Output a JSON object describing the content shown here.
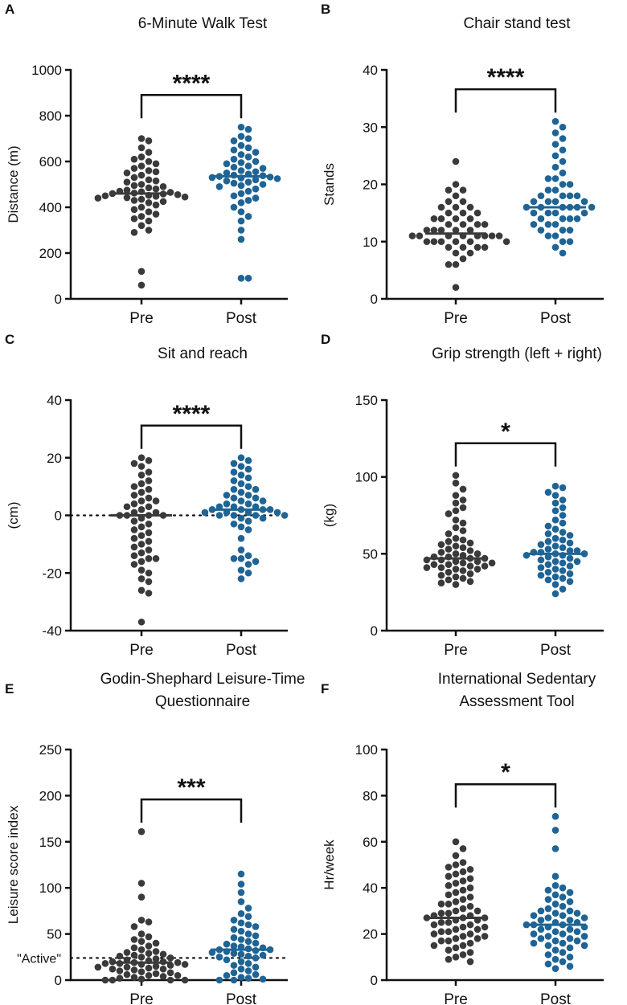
{
  "colors": {
    "pre": "#3a3a3a",
    "post": "#1f6495",
    "axis": "#111111"
  },
  "chart_data": [
    {
      "id": "A",
      "type": "scatter",
      "panel_label": "A",
      "title": [
        "6-Minute Walk Test"
      ],
      "ylabel": "Distance (m)",
      "ylim": [
        0,
        1000
      ],
      "yticks": [
        0,
        200,
        400,
        600,
        800,
        1000
      ],
      "categories": [
        "Pre",
        "Post"
      ],
      "significance": "****",
      "series": [
        {
          "name": "Pre",
          "median": 460,
          "values": [
            700,
            690,
            660,
            640,
            620,
            610,
            600,
            590,
            580,
            570,
            560,
            555,
            550,
            540,
            530,
            520,
            515,
            510,
            500,
            495,
            490,
            485,
            480,
            475,
            470,
            468,
            465,
            462,
            460,
            458,
            455,
            452,
            450,
            448,
            445,
            442,
            440,
            435,
            430,
            425,
            420,
            410,
            400,
            390,
            380,
            370,
            360,
            350,
            340,
            320,
            300,
            290,
            120,
            60
          ]
        },
        {
          "name": "Post",
          "median": 535,
          "values": [
            750,
            740,
            710,
            700,
            690,
            670,
            660,
            650,
            640,
            630,
            620,
            610,
            600,
            595,
            590,
            580,
            575,
            570,
            560,
            555,
            550,
            545,
            540,
            538,
            535,
            532,
            530,
            528,
            525,
            520,
            515,
            510,
            505,
            500,
            495,
            490,
            480,
            470,
            460,
            450,
            440,
            430,
            420,
            400,
            380,
            360,
            340,
            300,
            260,
            90,
            90
          ]
        }
      ]
    },
    {
      "id": "B",
      "type": "scatter",
      "panel_label": "B",
      "title": [
        "Chair stand test"
      ],
      "ylabel": "Stands",
      "ylim": [
        0,
        40
      ],
      "yticks": [
        0,
        10,
        20,
        30,
        40
      ],
      "categories": [
        "Pre",
        "Post"
      ],
      "significance": "****",
      "series": [
        {
          "name": "Pre",
          "median": 11.4,
          "values": [
            24,
            20,
            19,
            19,
            18,
            17,
            17,
            16,
            16,
            16,
            15,
            15,
            15,
            14,
            14,
            14,
            14,
            13,
            13,
            13,
            13,
            12,
            12,
            12,
            12,
            12,
            11,
            11,
            11,
            11,
            11,
            11,
            11,
            11,
            10,
            10,
            10,
            10,
            10,
            10,
            9,
            9,
            9,
            9,
            8,
            8,
            7,
            6,
            6,
            2
          ]
        },
        {
          "name": "Post",
          "median": 16,
          "values": [
            31,
            30,
            29,
            28,
            27,
            26,
            25,
            24,
            23,
            22,
            21,
            21,
            20,
            20,
            19,
            19,
            18,
            18,
            18,
            18,
            17,
            17,
            17,
            17,
            16,
            16,
            16,
            16,
            16,
            16,
            15,
            15,
            15,
            15,
            14,
            14,
            14,
            14,
            13,
            13,
            13,
            12,
            12,
            12,
            11,
            11,
            10,
            10,
            9,
            8
          ]
        }
      ]
    },
    {
      "id": "C",
      "type": "scatter",
      "panel_label": "C",
      "title": [
        "Sit and reach"
      ],
      "ylabel": "(cm)",
      "ylim": [
        -40,
        40
      ],
      "yticks": [
        -40,
        -20,
        0,
        20,
        40
      ],
      "categories": [
        "Pre",
        "Post"
      ],
      "significance": "****",
      "refline": 0,
      "series": [
        {
          "name": "Pre",
          "median": 0,
          "values": [
            20,
            19,
            18,
            17,
            15,
            14,
            12,
            11,
            10,
            9,
            8,
            7,
            6,
            5,
            5,
            4,
            3,
            3,
            2,
            1,
            1,
            0,
            0,
            0,
            0,
            -1,
            -2,
            -3,
            -4,
            -5,
            -6,
            -7,
            -8,
            -9,
            -10,
            -11,
            -12,
            -13,
            -14,
            -15,
            -15,
            -16,
            -17,
            -19,
            -20,
            -22,
            -23,
            -26,
            -27,
            -37
          ]
        },
        {
          "name": "Post",
          "median": 2,
          "values": [
            20,
            19,
            18,
            17,
            16,
            15,
            14,
            13,
            12,
            11,
            10,
            9,
            9,
            8,
            7,
            7,
            6,
            6,
            5,
            5,
            4,
            4,
            3,
            3,
            3,
            2,
            2,
            2,
            2,
            1,
            1,
            1,
            1,
            0,
            0,
            0,
            0,
            -1,
            -1,
            -2,
            -3,
            -4,
            -5,
            -8,
            -12,
            -14,
            -15,
            -15,
            -16,
            -17,
            -19,
            -20,
            -22
          ]
        }
      ]
    },
    {
      "id": "D",
      "type": "scatter",
      "panel_label": "D",
      "title": [
        "Grip strength (left + right)"
      ],
      "ylabel": "(kg)",
      "ylim": [
        0,
        150
      ],
      "yticks": [
        0,
        50,
        100,
        150
      ],
      "categories": [
        "Pre",
        "Post"
      ],
      "significance": "*",
      "series": [
        {
          "name": "Pre",
          "median": 47,
          "values": [
            101,
            96,
            92,
            88,
            85,
            83,
            80,
            78,
            76,
            72,
            70,
            67,
            65,
            63,
            60,
            59,
            58,
            57,
            56,
            55,
            54,
            53,
            52,
            51,
            50,
            50,
            49,
            48,
            48,
            47,
            47,
            46,
            46,
            45,
            45,
            44,
            44,
            43,
            43,
            42,
            42,
            41,
            41,
            40,
            40,
            39,
            38,
            37,
            36,
            35,
            34,
            33,
            32,
            31,
            30
          ]
        },
        {
          "name": "Post",
          "median": 50,
          "values": [
            94,
            93,
            90,
            88,
            85,
            83,
            80,
            78,
            75,
            72,
            70,
            68,
            66,
            64,
            63,
            62,
            60,
            59,
            58,
            57,
            56,
            55,
            54,
            53,
            52,
            52,
            51,
            51,
            50,
            50,
            49,
            49,
            48,
            47,
            46,
            45,
            45,
            44,
            43,
            42,
            41,
            40,
            39,
            38,
            37,
            36,
            35,
            34,
            33,
            32,
            30,
            27,
            24
          ]
        }
      ]
    },
    {
      "id": "E",
      "type": "scatter",
      "panel_label": "E",
      "title": [
        "Godin-Shephard Leisure-Time",
        "Questionnaire"
      ],
      "ylabel": "Leisure score index",
      "ylim": [
        0,
        250
      ],
      "yticks": [
        0,
        50,
        100,
        150,
        200,
        250
      ],
      "categories": [
        "Pre",
        "Post"
      ],
      "significance": "***",
      "refline": 24,
      "refline_label": "\"Active\"",
      "series": [
        {
          "name": "Pre",
          "median": 19,
          "values": [
            161,
            105,
            90,
            65,
            63,
            58,
            50,
            47,
            44,
            42,
            40,
            37,
            35,
            33,
            31,
            30,
            29,
            28,
            27,
            26,
            25,
            24,
            23,
            22,
            21,
            20,
            20,
            19,
            19,
            18,
            18,
            17,
            17,
            16,
            15,
            14,
            14,
            13,
            12,
            12,
            11,
            10,
            9,
            8,
            7,
            6,
            5,
            5,
            4,
            3,
            2,
            1,
            0,
            0,
            0,
            0
          ]
        },
        {
          "name": "Post",
          "median": 33,
          "values": [
            115,
            104,
            95,
            85,
            78,
            72,
            69,
            65,
            62,
            60,
            58,
            55,
            53,
            50,
            48,
            46,
            44,
            42,
            40,
            39,
            37,
            36,
            35,
            34,
            33,
            33,
            32,
            31,
            30,
            29,
            28,
            27,
            26,
            25,
            24,
            22,
            20,
            18,
            16,
            14,
            12,
            10,
            8,
            6,
            5,
            3,
            2,
            1,
            0,
            0
          ]
        }
      ]
    },
    {
      "id": "F",
      "type": "scatter",
      "panel_label": "F",
      "title": [
        "International Sedentary",
        "Assessment Tool"
      ],
      "ylabel": "Hr/week",
      "ylim": [
        0,
        100
      ],
      "yticks": [
        0,
        20,
        40,
        60,
        80,
        100
      ],
      "categories": [
        "Pre",
        "Post"
      ],
      "significance": "*",
      "series": [
        {
          "name": "Pre",
          "median": 27,
          "values": [
            60,
            57,
            54,
            51,
            50,
            49,
            48,
            47,
            46,
            45,
            44,
            43,
            42,
            41,
            40,
            39,
            38,
            37,
            36,
            35,
            34,
            33,
            33,
            32,
            31,
            30,
            30,
            29,
            29,
            28,
            28,
            27,
            27,
            27,
            26,
            26,
            25,
            25,
            24,
            24,
            23,
            23,
            22,
            22,
            21,
            21,
            20,
            20,
            19,
            19,
            18,
            18,
            17,
            17,
            16,
            15,
            15,
            14,
            13,
            12,
            11,
            10,
            9,
            8
          ]
        },
        {
          "name": "Post",
          "median": 24,
          "values": [
            71,
            65,
            57,
            45,
            41,
            40,
            39,
            38,
            37,
            36,
            35,
            34,
            33,
            32,
            31,
            30,
            30,
            29,
            29,
            28,
            28,
            27,
            27,
            26,
            26,
            25,
            25,
            24,
            24,
            24,
            23,
            23,
            22,
            22,
            21,
            21,
            20,
            20,
            19,
            19,
            18,
            18,
            17,
            17,
            16,
            16,
            15,
            15,
            14,
            13,
            12,
            11,
            10,
            9,
            8,
            7,
            6,
            5
          ]
        }
      ]
    }
  ]
}
